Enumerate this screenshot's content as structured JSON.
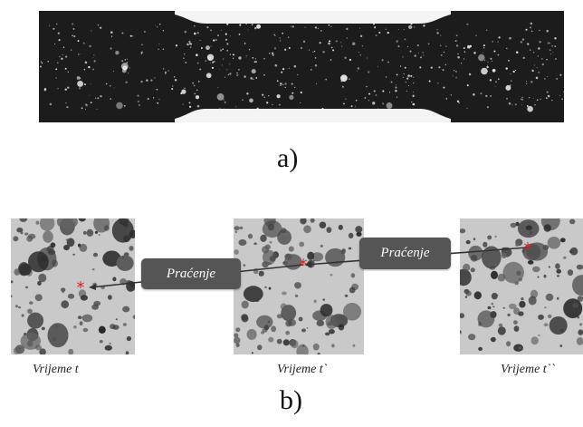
{
  "captions": {
    "a": "a)",
    "b": "b)"
  },
  "frames": [
    {
      "time_label": "Vrijeme t"
    },
    {
      "time_label": "Vrijeme t`"
    },
    {
      "time_label": "Vrijeme t``"
    }
  ],
  "tracking": {
    "label_1": "Praćenje",
    "label_2": "Praćenje"
  },
  "colors": {
    "specimen_background": "#1c1c1c",
    "speckle": "#e6e6e6",
    "frame_background": "#c9c9c9",
    "tracking_box": "#555555",
    "tracked_point": "#e02020",
    "arrow": "#333333"
  },
  "icons": {
    "tracked_point": "red-asterisk-marker",
    "arrow": "arrow-line"
  }
}
